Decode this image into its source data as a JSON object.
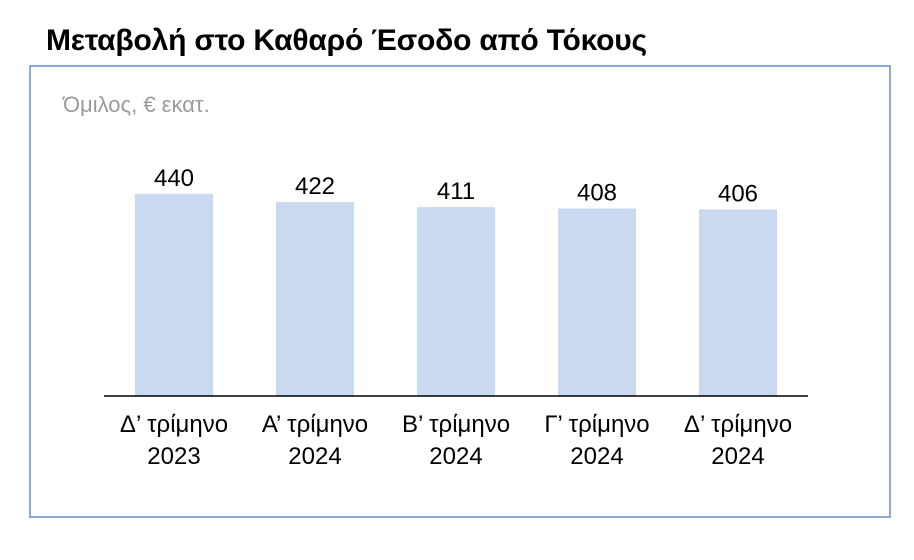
{
  "title": "Μεταβολή στο Καθαρό Έσοδο από Τόκους",
  "chart_data": {
    "type": "bar",
    "title": "Μεταβολή στο Καθαρό Έσοδο από Τόκους",
    "subtitle": "Όμιλος, € εκατ.",
    "categories": [
      [
        "Δ’ τρίμηνο",
        "2023"
      ],
      [
        "Α’ τρίμηνο",
        "2024"
      ],
      [
        "Β’ τρίμηνο",
        "2024"
      ],
      [
        "Γ’ τρίμηνο",
        "2024"
      ],
      [
        "Δ’ τρίμηνο",
        "2024"
      ]
    ],
    "values": [
      440,
      422,
      411,
      408,
      406
    ],
    "ylim": [
      0,
      470
    ],
    "grid": false,
    "bar_color": "#c9d9f0",
    "frame_color": "#8ea9d6",
    "axis_color": "#000000"
  }
}
